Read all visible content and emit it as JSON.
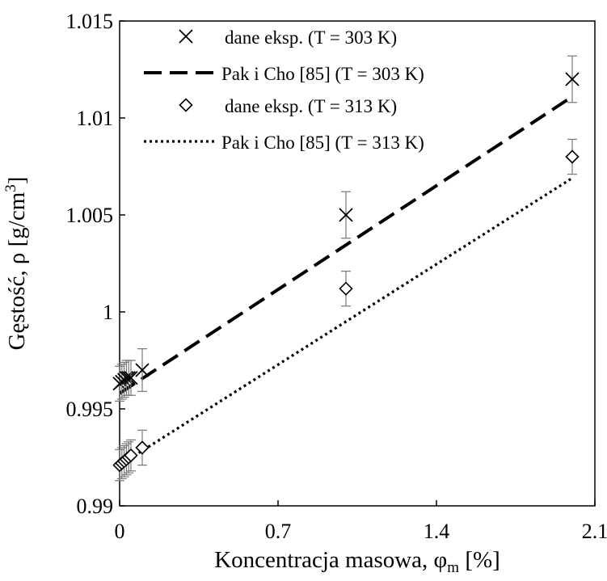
{
  "chart_data": {
    "type": "scatter",
    "xlabel": "Koncentracja masowa, φm [%]",
    "ylabel": "Gęstość, ρ [g/cm3]",
    "xlim": [
      0,
      2.1
    ],
    "ylim": [
      0.99,
      1.015
    ],
    "xticks": [
      0,
      0.7,
      1.4,
      2.1
    ],
    "xtick_labels": [
      "0",
      "0.7",
      "1.4",
      "2.1"
    ],
    "yticks": [
      0.99,
      0.995,
      1.0,
      1.005,
      1.01,
      1.015
    ],
    "ytick_labels": [
      "0.99",
      "0.995",
      "1",
      "1.005",
      "1.01",
      "1.015"
    ],
    "grid": false,
    "legend_position": "top",
    "series": [
      {
        "name": "dane eksp. (T = 303 K)",
        "kind": "points",
        "marker": "x",
        "x": [
          0.0,
          0.01,
          0.02,
          0.03,
          0.04,
          0.05,
          0.1,
          1.0,
          2.0
        ],
        "y": [
          0.9963,
          0.9964,
          0.9965,
          0.9966,
          0.9966,
          0.9966,
          0.997,
          1.005,
          1.012
        ],
        "err": [
          0.0009,
          0.0009,
          0.0009,
          0.0009,
          0.0009,
          0.0009,
          0.0011,
          0.0012,
          0.0012
        ]
      },
      {
        "name": "Pak i Cho [85] (T = 303 K)",
        "kind": "line",
        "dash": "dashed",
        "x": [
          0.0,
          2.0
        ],
        "y": [
          0.9958,
          1.0111
        ]
      },
      {
        "name": "dane eksp. (T = 313 K)",
        "kind": "points",
        "marker": "diamond",
        "x": [
          0.0,
          0.01,
          0.02,
          0.03,
          0.04,
          0.05,
          0.1,
          1.0,
          2.0
        ],
        "y": [
          0.9921,
          0.9922,
          0.9923,
          0.9924,
          0.9925,
          0.9926,
          0.993,
          1.0012,
          1.008
        ],
        "err": [
          0.0008,
          0.0008,
          0.0008,
          0.0008,
          0.0008,
          0.0008,
          0.0009,
          0.0009,
          0.0009
        ]
      },
      {
        "name": "Pak i Cho [85] (T = 313 K)",
        "kind": "line",
        "dash": "dotted",
        "x": [
          0.0,
          2.0
        ],
        "y": [
          0.9921,
          1.0069
        ]
      }
    ]
  }
}
